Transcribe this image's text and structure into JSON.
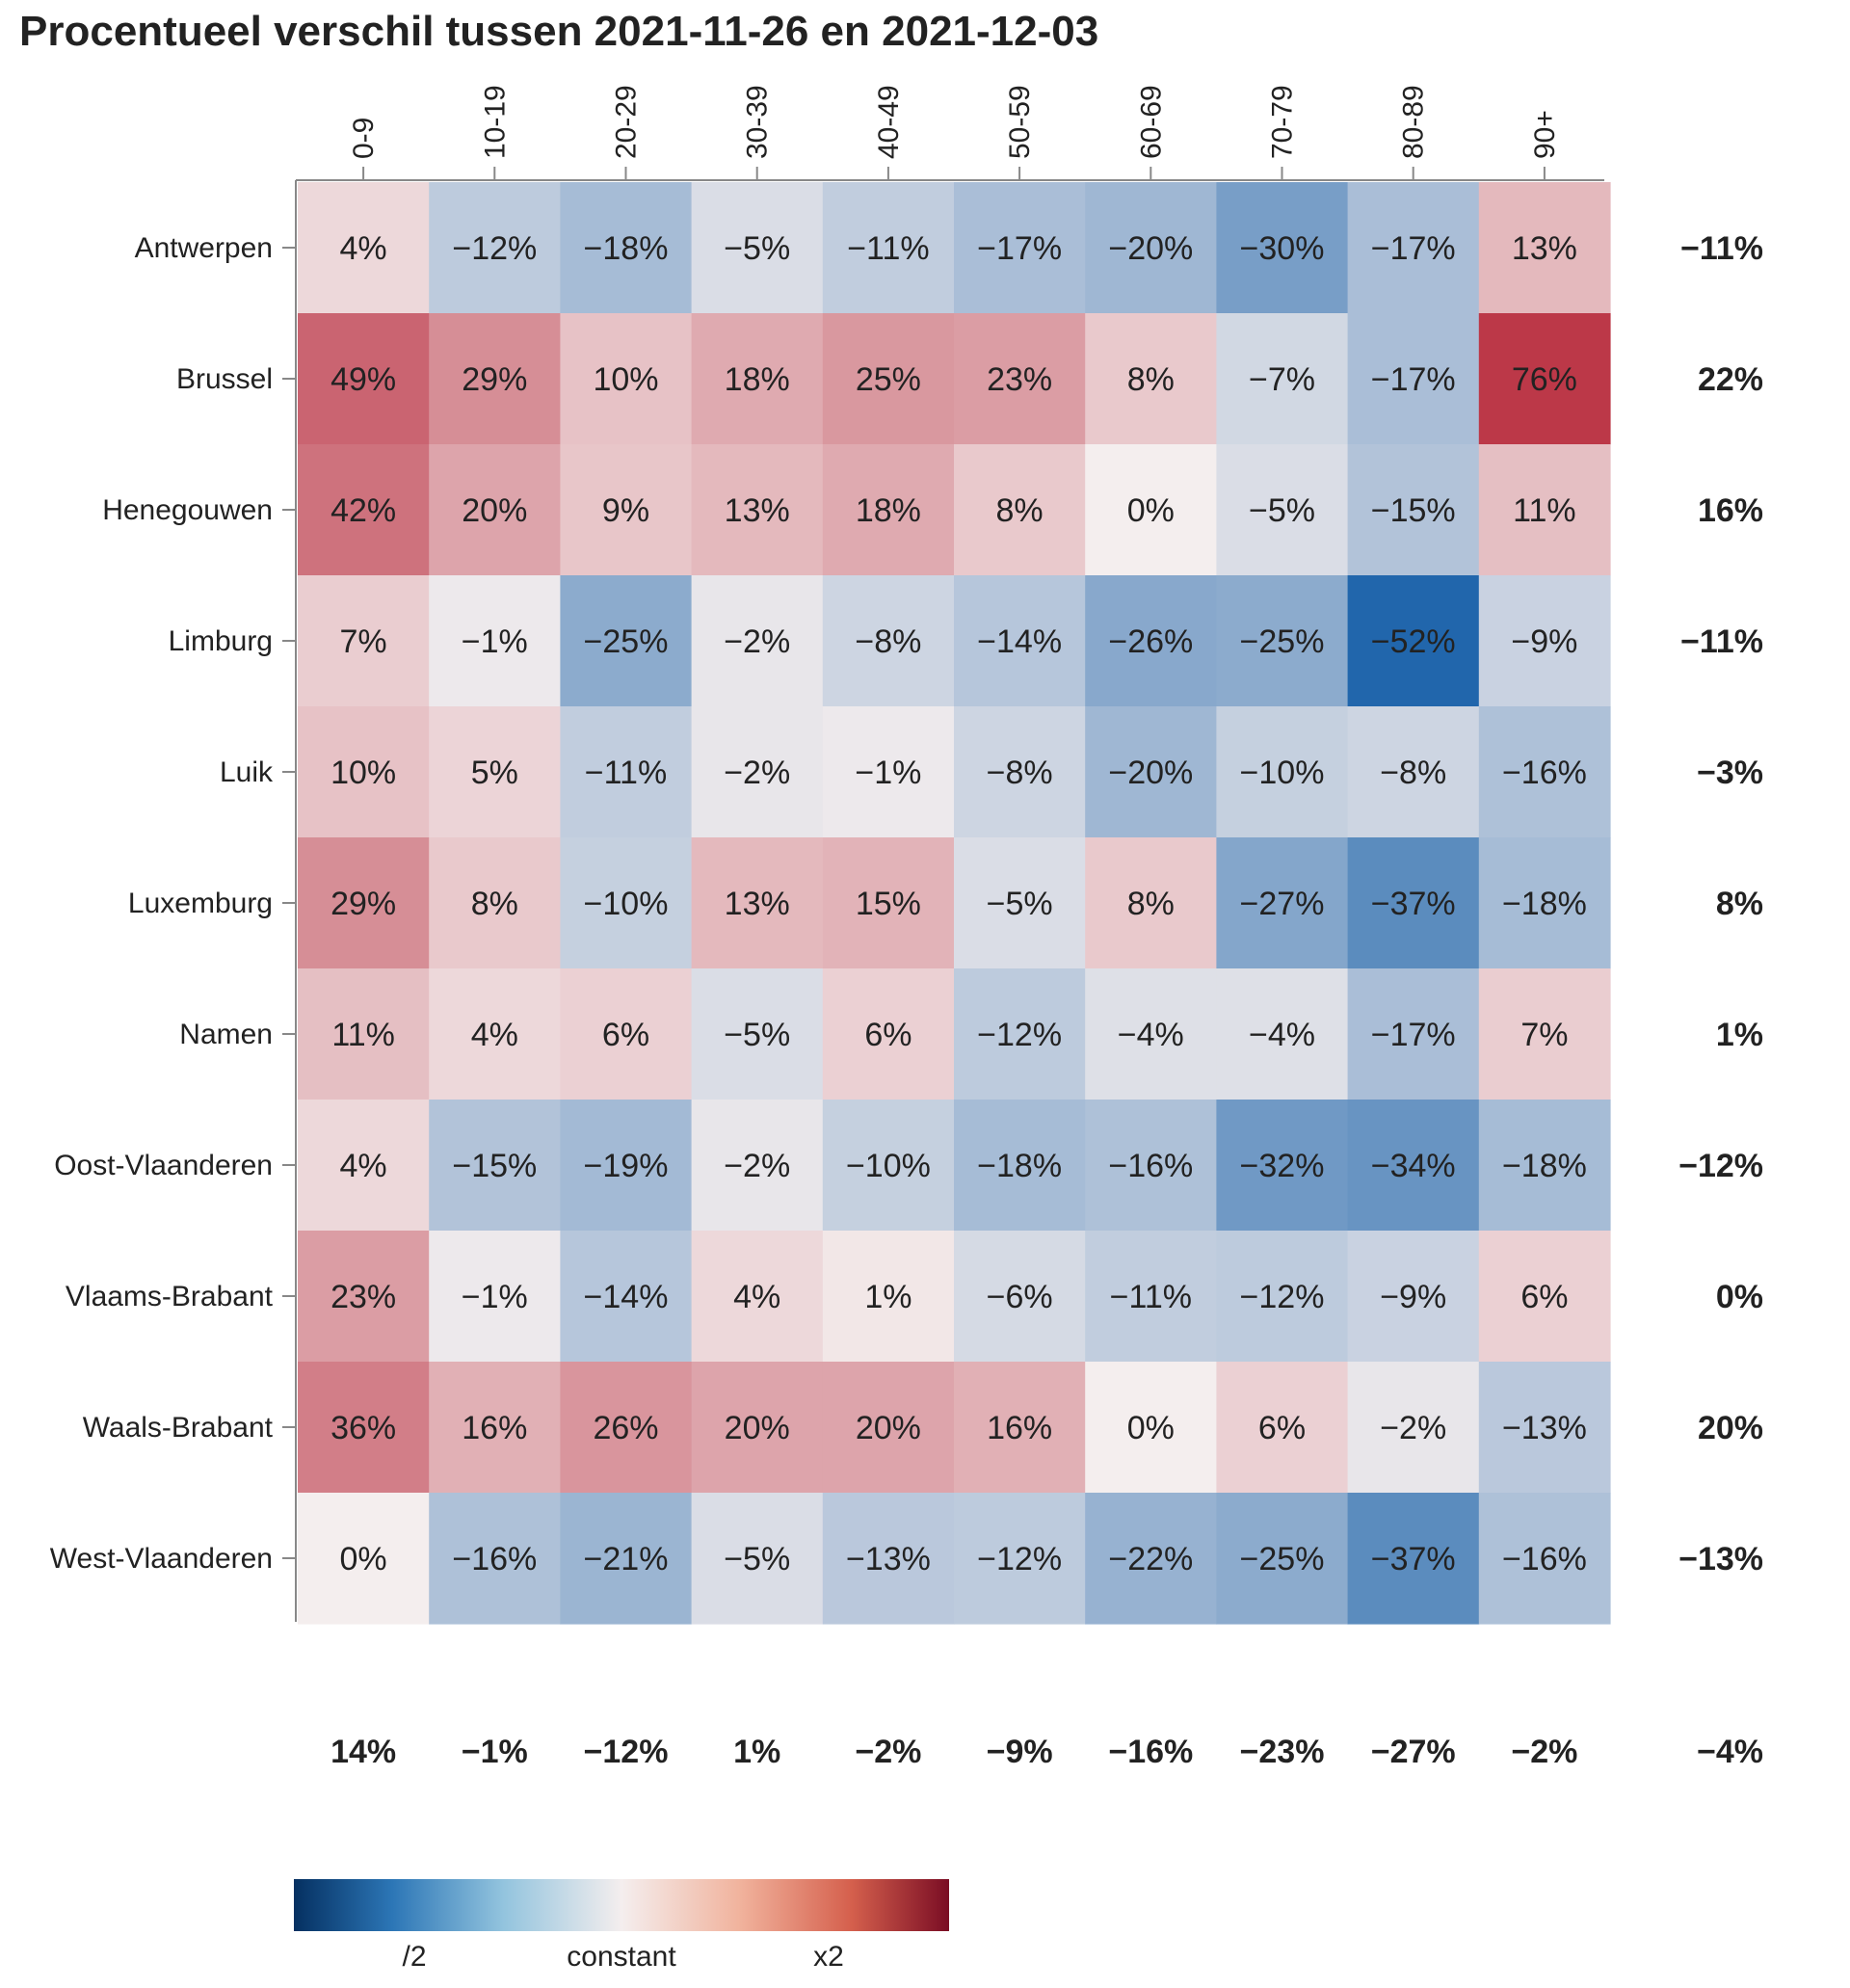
{
  "chart_data": {
    "type": "heatmap",
    "title": "Procentueel verschil tussen 2021-11-26 en 2021-12-03",
    "columns": [
      "0-9",
      "10-19",
      "20-29",
      "30-39",
      "40-49",
      "50-59",
      "60-69",
      "70-79",
      "80-89",
      "90+"
    ],
    "rows": [
      "Antwerpen",
      "Brussel",
      "Henegouwen",
      "Limburg",
      "Luik",
      "Luxemburg",
      "Namen",
      "Oost-Vlaanderen",
      "Vlaams-Brabant",
      "Waals-Brabant",
      "West-Vlaanderen"
    ],
    "values": [
      [
        4,
        -12,
        -18,
        -5,
        -11,
        -17,
        -20,
        -30,
        -17,
        13
      ],
      [
        49,
        29,
        10,
        18,
        25,
        23,
        8,
        -7,
        -17,
        76
      ],
      [
        42,
        20,
        9,
        13,
        18,
        8,
        0,
        -5,
        -15,
        11
      ],
      [
        7,
        -1,
        -25,
        -2,
        -8,
        -14,
        -26,
        -25,
        -52,
        -9
      ],
      [
        10,
        5,
        -11,
        -2,
        -1,
        -8,
        -20,
        -10,
        -8,
        -16
      ],
      [
        29,
        8,
        -10,
        13,
        15,
        -5,
        8,
        -27,
        -37,
        -18
      ],
      [
        11,
        4,
        6,
        -5,
        6,
        -12,
        -4,
        -4,
        -17,
        7
      ],
      [
        4,
        -15,
        -19,
        -2,
        -10,
        -18,
        -16,
        -32,
        -34,
        -18
      ],
      [
        23,
        -1,
        -14,
        4,
        1,
        -6,
        -11,
        -12,
        -9,
        6
      ],
      [
        36,
        16,
        26,
        20,
        20,
        16,
        0,
        6,
        -2,
        -13
      ],
      [
        0,
        -16,
        -21,
        -5,
        -13,
        -12,
        -22,
        -25,
        -37,
        -16
      ]
    ],
    "row_totals": [
      -11,
      22,
      16,
      -11,
      -3,
      8,
      1,
      -12,
      0,
      20,
      -13
    ],
    "column_totals": [
      14,
      -1,
      -12,
      1,
      -2,
      -9,
      -16,
      -23,
      -27,
      -2
    ],
    "grand_total": -4,
    "value_format": "percent",
    "color_scale": {
      "scheme": "diverging blue-white-red (log ratio)",
      "low_color": "#2166ac",
      "mid_color": "#f4eeee",
      "high_color": "#b2182b",
      "legend_labels": [
        "/2",
        "constant",
        "x2"
      ]
    }
  }
}
